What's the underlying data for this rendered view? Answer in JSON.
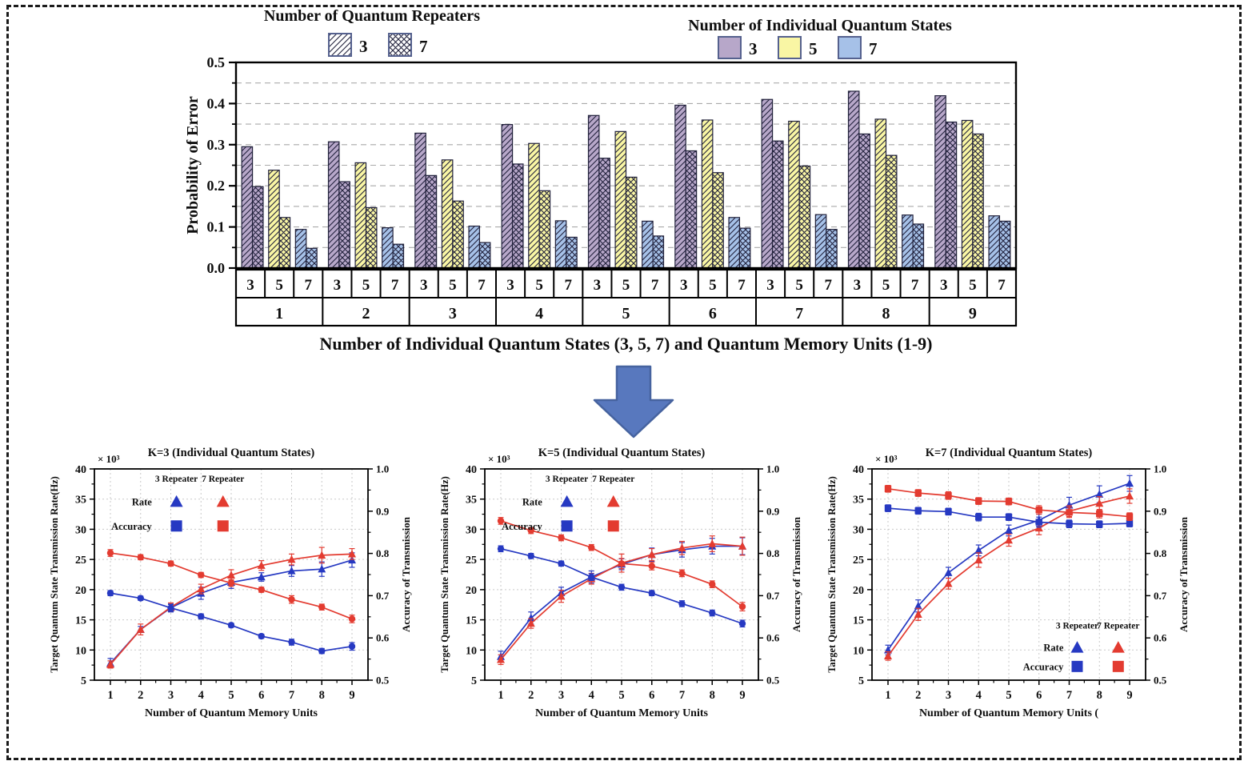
{
  "figure": {
    "arrow_icon": {
      "fill": "#5878be",
      "stroke": "#46639f"
    }
  },
  "chart_data": [
    {
      "id": "error-probability-bars",
      "type": "bar",
      "title": "",
      "ylabel": "Probability of Error",
      "xlabel": "Number of Individual Quantum States (3, 5, 7) and Quantum Memory Units (1-9)",
      "ylim": [
        0.0,
        0.5
      ],
      "ytick_labels": [
        "0.0",
        "0.1",
        "0.2",
        "0.3",
        "0.4",
        "0.5"
      ],
      "grid": {
        "orientation": "horizontal",
        "step": 0.05,
        "style": "dashed"
      },
      "bar_stroke": "#20203a",
      "legend_repeaters": {
        "title": "Number of Quantum Repeaters",
        "swatch_border": "#55618e",
        "entries": [
          {
            "label": "3",
            "hatch": "diagonal"
          },
          {
            "label": "7",
            "hatch": "cross"
          }
        ]
      },
      "legend_states": {
        "title": "Number of Individual Quantum States",
        "swatch_border": "#55618e",
        "entries": [
          {
            "label": "3",
            "color": "#b7a7c9"
          },
          {
            "label": "5",
            "color": "#f9f6a4"
          },
          {
            "label": "7",
            "color": "#a6c1e8"
          }
        ]
      },
      "group_labels": [
        "1",
        "2",
        "3",
        "4",
        "5",
        "6",
        "7",
        "8",
        "9"
      ],
      "state_labels": [
        "3",
        "5",
        "7"
      ],
      "series": [
        {
          "name": "states-3-repeaters-3",
          "state": "3",
          "repeaters": "3",
          "color": "#b7a7c9",
          "hatch": "diagonal",
          "values": [
            0.295,
            0.307,
            0.328,
            0.349,
            0.371,
            0.396,
            0.41,
            0.43,
            0.419
          ]
        },
        {
          "name": "states-3-repeaters-7",
          "state": "3",
          "repeaters": "7",
          "color": "#b7a7c9",
          "hatch": "cross",
          "values": [
            0.198,
            0.21,
            0.225,
            0.253,
            0.267,
            0.285,
            0.309,
            0.326,
            0.355
          ]
        },
        {
          "name": "states-5-repeaters-3",
          "state": "5",
          "repeaters": "3",
          "color": "#f9f6a4",
          "hatch": "diagonal",
          "values": [
            0.238,
            0.256,
            0.263,
            0.303,
            0.332,
            0.36,
            0.357,
            0.362,
            0.359
          ]
        },
        {
          "name": "states-5-repeaters-7",
          "state": "5",
          "repeaters": "7",
          "color": "#f9f6a4",
          "hatch": "cross",
          "values": [
            0.123,
            0.147,
            0.163,
            0.188,
            0.221,
            0.232,
            0.248,
            0.274,
            0.326
          ]
        },
        {
          "name": "states-7-repeaters-3",
          "state": "7",
          "repeaters": "3",
          "color": "#a6c1e8",
          "hatch": "diagonal",
          "values": [
            0.094,
            0.098,
            0.102,
            0.115,
            0.114,
            0.123,
            0.13,
            0.129,
            0.127
          ]
        },
        {
          "name": "states-7-repeaters-7",
          "state": "7",
          "repeaters": "7",
          "color": "#a6c1e8",
          "hatch": "cross",
          "values": [
            0.048,
            0.058,
            0.062,
            0.075,
            0.078,
            0.097,
            0.094,
            0.107,
            0.114
          ]
        }
      ]
    },
    {
      "id": "k3",
      "type": "line",
      "title": "K=3 (Individual Quantum States)",
      "scale_note": "× 10³",
      "xlabel": "Number of Quantum Memory Units",
      "ylabel_left": "Target Quantum State Transmission Rate(Hz)",
      "ylabel_right": "Accuracy of Transmission",
      "x": [
        1,
        2,
        3,
        4,
        5,
        6,
        7,
        8,
        9
      ],
      "ylim_left": [
        5,
        40
      ],
      "yticks_left": [
        5,
        10,
        15,
        20,
        25,
        30,
        35,
        40
      ],
      "ylim_right": [
        0.5,
        1.0
      ],
      "yticks_right": [
        0.5,
        0.6,
        0.7,
        0.8,
        0.9,
        1.0
      ],
      "grid": {
        "style": "dotted"
      },
      "legend": {
        "columns": [
          "3 Repeater",
          "7 Repeater"
        ],
        "rows": [
          "Rate",
          "Accuracy"
        ],
        "column_colors": [
          "#2639c2",
          "#e33b30"
        ],
        "position": "top-left"
      },
      "series": [
        {
          "name": "rate-3-repeater",
          "axis": "left",
          "marker": "triangle",
          "color": "#2639c2",
          "values": [
            7.8,
            13.4,
            17.0,
            19.4,
            21.2,
            22.1,
            23.1,
            23.4,
            24.9
          ],
          "errors": [
            0.8,
            0.5,
            0.7,
            1.0,
            1.0,
            0.7,
            0.9,
            1.2,
            1.2
          ]
        },
        {
          "name": "rate-7-repeater",
          "axis": "left",
          "marker": "triangle",
          "color": "#e33b30",
          "values": [
            7.6,
            13.4,
            17.1,
            20.1,
            22.4,
            24.0,
            25.0,
            25.7,
            25.9
          ],
          "errors": [
            0.6,
            0.9,
            0.7,
            0.8,
            0.9,
            0.8,
            0.9,
            1.3,
            0.9
          ]
        },
        {
          "name": "accuracy-3-repeater",
          "axis": "right",
          "marker": "circle",
          "color": "#2639c2",
          "values": [
            0.706,
            0.694,
            0.671,
            0.651,
            0.63,
            0.604,
            0.59,
            0.569,
            0.58
          ],
          "errors": [
            0.006,
            0.005,
            0.008,
            0.006,
            0.005,
            0.005,
            0.007,
            0.006,
            0.009
          ]
        },
        {
          "name": "accuracy-7-repeater",
          "axis": "right",
          "marker": "circle",
          "color": "#e33b30",
          "values": [
            0.801,
            0.791,
            0.776,
            0.749,
            0.73,
            0.714,
            0.691,
            0.673,
            0.645
          ],
          "errors": [
            0.008,
            0.006,
            0.006,
            0.006,
            0.008,
            0.006,
            0.009,
            0.007,
            0.009
          ]
        }
      ]
    },
    {
      "id": "k5",
      "type": "line",
      "title": "K=5 (Individual Quantum States)",
      "scale_note": "× 10³",
      "xlabel": "Number of Quantum Memory Units",
      "ylabel_left": "Target Quantum State Transmission Rate(Hz)",
      "ylabel_right": "Accuracy of Transmission",
      "x": [
        1,
        2,
        3,
        4,
        5,
        6,
        7,
        8,
        9
      ],
      "ylim_left": [
        5,
        40
      ],
      "yticks_left": [
        5,
        10,
        15,
        20,
        25,
        30,
        35,
        40
      ],
      "ylim_right": [
        0.5,
        1.0
      ],
      "yticks_right": [
        0.5,
        0.6,
        0.7,
        0.8,
        0.9,
        1.0
      ],
      "grid": {
        "style": "dotted"
      },
      "legend": {
        "columns": [
          "3 Repeater",
          "7 Repeater"
        ],
        "rows": [
          "Rate",
          "Accuracy"
        ],
        "column_colors": [
          "#2639c2",
          "#e33b30"
        ],
        "position": "top-left"
      },
      "series": [
        {
          "name": "rate-3-repeater",
          "axis": "left",
          "marker": "triangle",
          "color": "#2639c2",
          "values": [
            8.9,
            15.3,
            19.5,
            22.1,
            24.2,
            25.8,
            26.6,
            27.2,
            27.2
          ],
          "errors": [
            0.9,
            1.0,
            0.9,
            1.0,
            0.9,
            1.1,
            1.2,
            1.3,
            1.4
          ]
        },
        {
          "name": "rate-7-repeater",
          "axis": "left",
          "marker": "triangle",
          "color": "#e33b30",
          "values": [
            8.4,
            14.4,
            18.9,
            21.8,
            24.4,
            25.8,
            26.9,
            27.6,
            27.2
          ],
          "errors": [
            0.8,
            0.8,
            1.0,
            0.9,
            1.5,
            1.0,
            1.1,
            1.3,
            1.5
          ]
        },
        {
          "name": "accuracy-3-repeater",
          "axis": "right",
          "marker": "circle",
          "color": "#2639c2",
          "values": [
            0.811,
            0.794,
            0.776,
            0.744,
            0.72,
            0.706,
            0.681,
            0.659,
            0.634
          ],
          "errors": [
            0.007,
            0.006,
            0.006,
            0.008,
            0.007,
            0.006,
            0.007,
            0.007,
            0.008
          ]
        },
        {
          "name": "accuracy-7-repeater",
          "axis": "right",
          "marker": "circle",
          "color": "#e33b30",
          "values": [
            0.877,
            0.854,
            0.837,
            0.814,
            0.776,
            0.77,
            0.753,
            0.727,
            0.674
          ],
          "errors": [
            0.008,
            0.007,
            0.007,
            0.007,
            0.012,
            0.009,
            0.008,
            0.008,
            0.01
          ]
        }
      ]
    },
    {
      "id": "k7",
      "type": "line",
      "title": "K=7 (Individual Quantum States)",
      "scale_note": "× 10³",
      "xlabel": "Number of Quantum Memory Units (",
      "ylabel_left": "Target Quantum State Transmission Rate(Hz)",
      "ylabel_right": "Accuracy of Transmission",
      "x": [
        1,
        2,
        3,
        4,
        5,
        6,
        7,
        8,
        9
      ],
      "ylim_left": [
        5,
        40
      ],
      "yticks_left": [
        5,
        10,
        15,
        20,
        25,
        30,
        35,
        40
      ],
      "ylim_right": [
        0.5,
        1.0
      ],
      "yticks_right": [
        0.5,
        0.6,
        0.7,
        0.8,
        0.9,
        1.0
      ],
      "grid": {
        "style": "dotted"
      },
      "legend": {
        "columns": [
          "3 Repeater",
          "7 Repeater"
        ],
        "rows": [
          "Rate",
          "Accuracy"
        ],
        "column_colors": [
          "#2639c2",
          "#e33b30"
        ],
        "position": "bottom-right"
      },
      "series": [
        {
          "name": "rate-3-repeater",
          "axis": "left",
          "marker": "triangle",
          "color": "#2639c2",
          "values": [
            10.0,
            17.3,
            22.8,
            26.5,
            29.8,
            31.5,
            34.0,
            35.8,
            37.6
          ],
          "errors": [
            0.8,
            1.0,
            0.9,
            0.9,
            0.9,
            1.0,
            1.3,
            1.4,
            1.3
          ]
        },
        {
          "name": "rate-7-repeater",
          "axis": "left",
          "marker": "triangle",
          "color": "#e33b30",
          "values": [
            9.0,
            15.9,
            21.0,
            24.9,
            28.2,
            30.2,
            33.0,
            34.3,
            35.5
          ],
          "errors": [
            0.7,
            1.0,
            0.9,
            1.2,
            1.0,
            1.1,
            0.9,
            1.1,
            1.2
          ]
        },
        {
          "name": "accuracy-3-repeater",
          "axis": "right",
          "marker": "square",
          "color": "#2639c2",
          "values": [
            0.907,
            0.901,
            0.899,
            0.886,
            0.886,
            0.874,
            0.87,
            0.869,
            0.871
          ],
          "errors": [
            0.008,
            0.008,
            0.008,
            0.009,
            0.008,
            0.012,
            0.009,
            0.008,
            0.008
          ]
        },
        {
          "name": "accuracy-7-repeater",
          "axis": "right",
          "marker": "square",
          "color": "#e33b30",
          "values": [
            0.953,
            0.943,
            0.937,
            0.924,
            0.923,
            0.903,
            0.897,
            0.894,
            0.887
          ],
          "errors": [
            0.008,
            0.008,
            0.009,
            0.008,
            0.008,
            0.01,
            0.012,
            0.01,
            0.009
          ]
        }
      ]
    }
  ]
}
